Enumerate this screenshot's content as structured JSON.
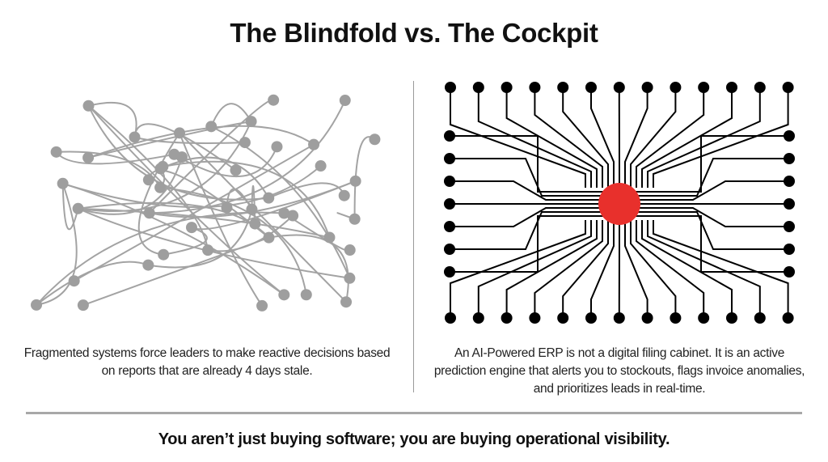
{
  "title": "The Blindfold vs. The Cockpit",
  "left_panel": {
    "caption": "Fragmented systems force leaders to make reactive decisions based on reports that are already 4 days stale.",
    "node_color": "#9e9e9e"
  },
  "right_panel": {
    "caption": "An AI-Powered ERP is not a digital filing cabinet. It is an active prediction engine that alerts you to stockouts, flags invoice anomalies, and prioritizes leads in real-time.",
    "node_color": "#000000",
    "hub_color": "#e8302c"
  },
  "footer": "You aren’t just buying software; you are buying operational visibility."
}
